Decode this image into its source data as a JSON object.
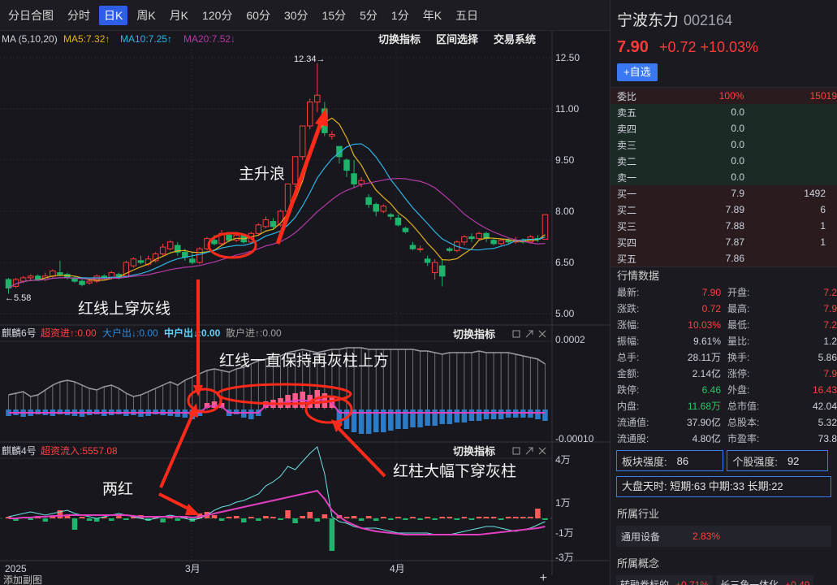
{
  "tabs": [
    "分日合图",
    "分时",
    "日K",
    "周K",
    "月K",
    "120分",
    "60分",
    "30分",
    "15分",
    "5分",
    "1分",
    "年K",
    "五日"
  ],
  "active_tab": "日K",
  "main_panel": {
    "ma_label": "MA (5,10,20)",
    "ma5": "MA5:7.32↑",
    "ma10": "MA10:7.25↑",
    "ma20": "MA20:7.52↓",
    "tools": [
      "切换指标",
      "区间选择",
      "交易系统"
    ],
    "y_ticks": [
      "12.50",
      "11.00",
      "9.50",
      "8.00",
      "6.50",
      "5.00"
    ],
    "high_label": "12.34→",
    "low_label": "←5.58",
    "annotations": {
      "zhushenglang": "主升浪",
      "hongxian_shangchuan": "红线上穿灰线"
    }
  },
  "qilin6": {
    "name": "麒麟6号",
    "items": [
      "超资进↑:0.00",
      "大户出↓:0.00",
      "中户出↓:0.00",
      "散户进↑:0.00"
    ],
    "toggle": "切换指标",
    "y_top": "0.0002",
    "y_bottom": "-0.00010",
    "annotation_top": "红线一直保持再灰柱上方",
    "annotation_right": "红柱大幅下穿灰柱"
  },
  "qilin4": {
    "name": "麒麟4号",
    "item": "超资流入:5557.08",
    "toggle": "切换指标",
    "y_ticks": [
      "4万",
      "1万",
      "-1万",
      "-3万"
    ],
    "annotation": "两红"
  },
  "x_labels": [
    "2025",
    "3月",
    "4月"
  ],
  "add_sub_chart": "添加副图",
  "stock": {
    "name": "宁波东力",
    "code": "002164",
    "price": "7.90",
    "change": "+0.72",
    "pct": "+10.03%",
    "add_button": "+自选"
  },
  "order_book": {
    "webi_label": "委比",
    "webi_val": "100%",
    "webi_diff": "15019",
    "sells": [
      {
        "label": "卖五",
        "price": "0.0",
        "vol": ""
      },
      {
        "label": "卖四",
        "price": "0.0",
        "vol": ""
      },
      {
        "label": "卖三",
        "price": "0.0",
        "vol": ""
      },
      {
        "label": "卖二",
        "price": "0.0",
        "vol": ""
      },
      {
        "label": "卖一",
        "price": "0.0",
        "vol": ""
      }
    ],
    "buys": [
      {
        "label": "买一",
        "price": "7.9",
        "vol": "1492"
      },
      {
        "label": "买二",
        "price": "7.89",
        "vol": "6"
      },
      {
        "label": "买三",
        "price": "7.88",
        "vol": "1"
      },
      {
        "label": "买四",
        "price": "7.87",
        "vol": "1"
      },
      {
        "label": "买五",
        "price": "7.86",
        "vol": ""
      }
    ]
  },
  "quote_title": "行情数据",
  "quotes": [
    [
      "最新:",
      "7.90",
      "开盘:",
      "7.2"
    ],
    [
      "涨跌:",
      "0.72",
      "最高:",
      "7.9"
    ],
    [
      "涨幅:",
      "10.03%",
      "最低:",
      "7.2"
    ],
    [
      "振幅:",
      "9.61%",
      "量比:",
      "1.2"
    ],
    [
      "总手:",
      "28.11万",
      "换手:",
      "5.86"
    ],
    [
      "金额:",
      "2.14亿",
      "涨停:",
      "7.9"
    ],
    [
      "跌停:",
      "6.46",
      "外盘:",
      "16.43"
    ],
    [
      "内盘:",
      "11.68万",
      "总市值:",
      "42.04"
    ],
    [
      "流通值:",
      "37.90亿",
      "总股本:",
      "5.32"
    ],
    [
      "流通股:",
      "4.80亿",
      "市盈率:",
      "73.8"
    ]
  ],
  "strength": {
    "sector_label": "板块强度:",
    "sector_val": "86",
    "stock_label": "个股强度:",
    "stock_val": "92"
  },
  "dapan": "大盘天时:  短期:63 中期:33 长期:22",
  "industry_title": "所属行业",
  "industry": {
    "name": "通用设备",
    "pct": "2.83%"
  },
  "concept_title": "所属概念",
  "concepts": [
    {
      "name": "转融券标的",
      "pct": "+0.71%"
    },
    {
      "name": "长三角一体化",
      "pct": "+0.49"
    }
  ],
  "colors": {
    "up": "#ff3b3b",
    "down": "#1fb36b",
    "ma5": "#e3b31c",
    "ma10": "#2fb4e6",
    "ma20": "#b43aa6",
    "accent": "#2f5ee6"
  }
}
